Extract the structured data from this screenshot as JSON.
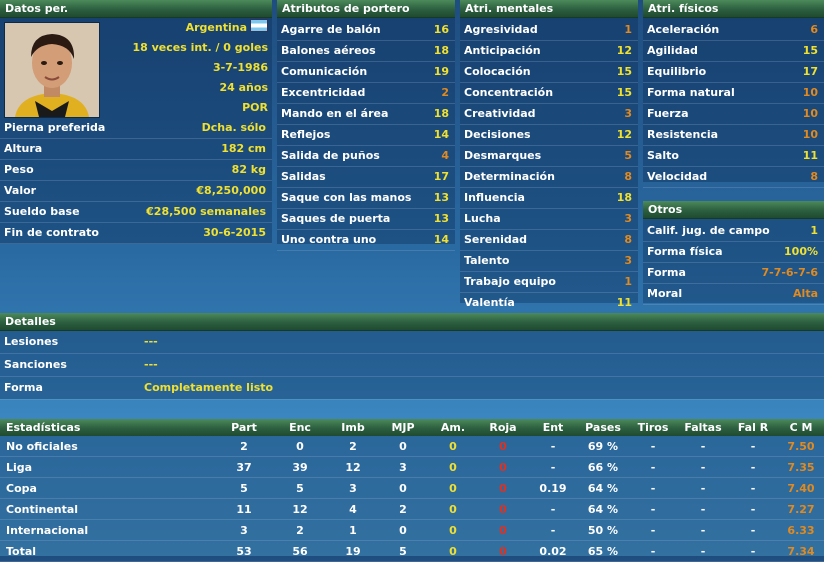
{
  "personal": {
    "header": "Datos per.",
    "nation": "Argentina",
    "caps": "18 veces int. / 0 goles",
    "dob": "3-7-1986",
    "age": "24 años",
    "position": "POR",
    "rows": [
      {
        "label": "Pierna preferida",
        "value": "Dcha. sólo"
      },
      {
        "label": "Altura",
        "value": "182 cm"
      },
      {
        "label": "Peso",
        "value": "82 kg"
      },
      {
        "label": "Valor",
        "value": "€8,250,000"
      },
      {
        "label": "Sueldo base",
        "value": "€28,500 semanales"
      },
      {
        "label": "Fin de contrato",
        "value": "30-6-2015"
      }
    ]
  },
  "goalkeeping": {
    "header": "Atributos de portero",
    "rows": [
      {
        "label": "Agarre de balón",
        "value": "16",
        "tone": "yellow"
      },
      {
        "label": "Balones aéreos",
        "value": "18",
        "tone": "yellow"
      },
      {
        "label": "Comunicación",
        "value": "19",
        "tone": "yellow"
      },
      {
        "label": "Excentricidad",
        "value": "2",
        "tone": "orange"
      },
      {
        "label": "Mando en el área",
        "value": "18",
        "tone": "yellow"
      },
      {
        "label": "Reflejos",
        "value": "14",
        "tone": "yellow"
      },
      {
        "label": "Salida de puños",
        "value": "4",
        "tone": "orange"
      },
      {
        "label": "Salidas",
        "value": "17",
        "tone": "yellow"
      },
      {
        "label": "Saque con las manos",
        "value": "13",
        "tone": "yellow"
      },
      {
        "label": "Saques de puerta",
        "value": "13",
        "tone": "yellow"
      },
      {
        "label": "Uno contra uno",
        "value": "14",
        "tone": "yellow"
      }
    ]
  },
  "mental": {
    "header": "Atri. mentales",
    "rows": [
      {
        "label": "Agresividad",
        "value": "1",
        "tone": "orange"
      },
      {
        "label": "Anticipación",
        "value": "12",
        "tone": "yellow"
      },
      {
        "label": "Colocación",
        "value": "15",
        "tone": "yellow"
      },
      {
        "label": "Concentración",
        "value": "15",
        "tone": "yellow"
      },
      {
        "label": "Creatividad",
        "value": "3",
        "tone": "orange"
      },
      {
        "label": "Decisiones",
        "value": "12",
        "tone": "yellow"
      },
      {
        "label": "Desmarques",
        "value": "5",
        "tone": "orange"
      },
      {
        "label": "Determinación",
        "value": "8",
        "tone": "orange"
      },
      {
        "label": "Influencia",
        "value": "18",
        "tone": "yellow"
      },
      {
        "label": "Lucha",
        "value": "3",
        "tone": "orange"
      },
      {
        "label": "Serenidad",
        "value": "8",
        "tone": "orange"
      },
      {
        "label": "Talento",
        "value": "3",
        "tone": "orange"
      },
      {
        "label": "Trabajo equipo",
        "value": "1",
        "tone": "orange"
      },
      {
        "label": "Valentía",
        "value": "11",
        "tone": "yellow"
      }
    ]
  },
  "physical": {
    "header": "Atri. físicos",
    "rows": [
      {
        "label": "Aceleración",
        "value": "6",
        "tone": "orange"
      },
      {
        "label": "Agilidad",
        "value": "15",
        "tone": "yellow"
      },
      {
        "label": "Equilibrio",
        "value": "17",
        "tone": "yellow"
      },
      {
        "label": "Forma natural",
        "value": "10",
        "tone": "orange"
      },
      {
        "label": "Fuerza",
        "value": "10",
        "tone": "orange"
      },
      {
        "label": "Resistencia",
        "value": "10",
        "tone": "orange"
      },
      {
        "label": "Salto",
        "value": "11",
        "tone": "yellow"
      },
      {
        "label": "Velocidad",
        "value": "8",
        "tone": "orange"
      }
    ]
  },
  "others": {
    "header": "Otros",
    "rows": [
      {
        "label": "Calif. jug. de campo",
        "value": "1",
        "tone": "yellow"
      },
      {
        "label": "Forma física",
        "value": "100%",
        "tone": "yellow"
      },
      {
        "label": "Forma",
        "value": "7-7-6-7-6",
        "tone": "orange"
      },
      {
        "label": "Moral",
        "value": "Alta",
        "tone": "orange"
      }
    ]
  },
  "details": {
    "header": "Detalles",
    "rows": [
      {
        "label": "Lesiones",
        "value": "---"
      },
      {
        "label": "Sanciones",
        "value": "---"
      },
      {
        "label": "Forma",
        "value": "Completamente listo"
      }
    ]
  },
  "stats": {
    "columns": [
      "Estadísticas",
      "Part",
      "Enc",
      "Imb",
      "MJP",
      "Am.",
      "Roja",
      "Ent",
      "Pases",
      "Tiros",
      "Faltas",
      "Fal R",
      "C M"
    ],
    "rows": [
      [
        "No oficiales",
        "2",
        "0",
        "2",
        "0",
        "0",
        "0",
        "-",
        "69 %",
        "-",
        "-",
        "-",
        "7.50"
      ],
      [
        "Liga",
        "37",
        "39",
        "12",
        "3",
        "0",
        "0",
        "-",
        "66 %",
        "-",
        "-",
        "-",
        "7.35"
      ],
      [
        "Copa",
        "5",
        "5",
        "3",
        "0",
        "0",
        "0",
        "0.19",
        "64 %",
        "-",
        "-",
        "-",
        "7.40"
      ],
      [
        "Continental",
        "11",
        "12",
        "4",
        "2",
        "0",
        "0",
        "-",
        "64 %",
        "-",
        "-",
        "-",
        "7.27"
      ],
      [
        "Internacional",
        "3",
        "2",
        "1",
        "0",
        "0",
        "0",
        "-",
        "50 %",
        "-",
        "-",
        "-",
        "6.33"
      ],
      [
        "Total",
        "53",
        "56",
        "19",
        "5",
        "0",
        "0",
        "0.02",
        "65 %",
        "-",
        "-",
        "-",
        "7.34"
      ]
    ]
  }
}
